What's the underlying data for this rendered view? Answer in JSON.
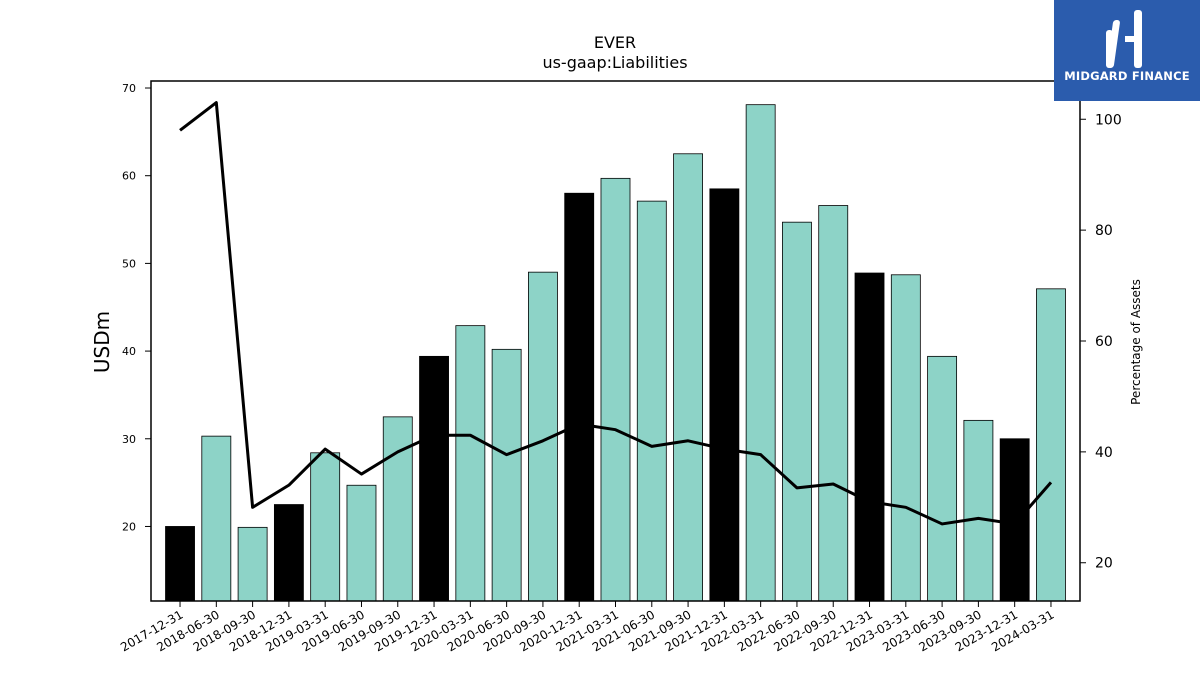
{
  "chart_data": {
    "type": "bar",
    "title": "EVER",
    "subtitle": "us-gaap:Liabilities",
    "ylabel": "USDm",
    "y2label": "Percentage of Assets",
    "ylim": [
      11.5,
      70.8
    ],
    "y2lim": [
      13.1,
      106.9
    ],
    "yticks": [
      20,
      30,
      40,
      50,
      60,
      70
    ],
    "y2ticks": [
      20,
      40,
      60,
      80,
      100
    ],
    "categories": [
      "2017-12-31",
      "2018-06-30",
      "2018-09-30",
      "2018-12-31",
      "2019-03-31",
      "2019-06-30",
      "2019-09-30",
      "2019-12-31",
      "2020-03-31",
      "2020-06-30",
      "2020-09-30",
      "2020-12-31",
      "2021-03-31",
      "2021-06-30",
      "2021-09-30",
      "2021-12-31",
      "2022-03-31",
      "2022-06-30",
      "2022-09-30",
      "2022-12-31",
      "2023-03-31",
      "2023-06-30",
      "2023-09-30",
      "2023-12-31",
      "2024-03-31"
    ],
    "series": [
      {
        "type": "bar",
        "values": [
          20.0,
          30.3,
          19.9,
          22.5,
          28.4,
          24.7,
          32.5,
          39.4,
          42.9,
          40.2,
          49.0,
          58.0,
          59.7,
          57.1,
          62.5,
          58.5,
          68.1,
          54.7,
          56.6,
          48.9,
          48.7,
          39.4,
          32.1,
          30.0,
          47.1
        ],
        "year_end_color": "#000000",
        "color": "#8dd3c7"
      },
      {
        "type": "line",
        "axis": "right",
        "color": "#000000",
        "values": [
          98.0,
          103.0,
          30.0,
          34.0,
          40.5,
          36.0,
          40.0,
          43.0,
          43.0,
          39.5,
          42.0,
          45.0,
          44.0,
          41.0,
          42.0,
          40.5,
          39.5,
          33.5,
          34.2,
          31.0,
          30.0,
          27.0,
          28.0,
          27.0,
          34.5
        ]
      }
    ]
  },
  "logo": {
    "text": "MIDGARD FINANCE"
  }
}
